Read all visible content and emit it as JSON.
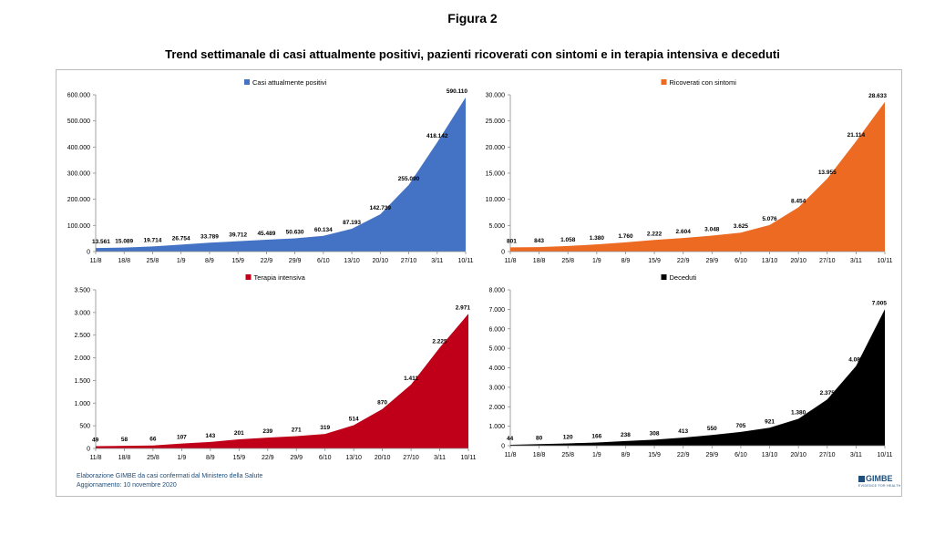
{
  "figure_label": "Figura 2",
  "figure_title": "Trend settimanale di casi attualmente positivi, pazienti ricoverati con sintomi e in terapia intensiva e deceduti",
  "footer": {
    "line1": "Elaborazione GIMBE da casi confermati dal Ministero della Salute",
    "line2": "Aggiornamento: 10 novembre 2020"
  },
  "logo": {
    "text": "GIMBE",
    "tagline": "EVIDENCE FOR HEALTH"
  },
  "chart_data": [
    {
      "type": "area",
      "title": "Casi attualmente positivi",
      "color": "#4472c4",
      "categories": [
        "11/8",
        "18/8",
        "25/8",
        "1/9",
        "8/9",
        "15/9",
        "22/9",
        "29/9",
        "6/10",
        "13/10",
        "20/10",
        "27/10",
        "3/11",
        "10/11"
      ],
      "series": [
        {
          "name": "Casi attualmente positivi",
          "values": [
            13561,
            15089,
            19714,
            26754,
            33789,
            39712,
            45489,
            50630,
            60134,
            87193,
            142739,
            255090,
            418142,
            590110
          ]
        }
      ],
      "data_labels": [
        "13.561",
        "15.089",
        "19.714",
        "26.754",
        "33.789",
        "39.712",
        "45.489",
        "50.630",
        "60.134",
        "87.193",
        "142.739",
        "255.090",
        "418.142",
        "590.110"
      ],
      "ylim": [
        0,
        600000
      ],
      "yticks": [
        0,
        100000,
        200000,
        300000,
        400000,
        500000,
        600000
      ],
      "ytick_labels": [
        "0",
        "100.000",
        "200.000",
        "300.000",
        "400.000",
        "500.000",
        "600.000"
      ],
      "legend_position": "top"
    },
    {
      "type": "area",
      "title": "Ricoverati con sintomi",
      "color": "#ed6a22",
      "categories": [
        "11/8",
        "18/8",
        "25/8",
        "1/9",
        "8/9",
        "15/9",
        "22/9",
        "29/9",
        "6/10",
        "13/10",
        "20/10",
        "27/10",
        "3/11",
        "10/11"
      ],
      "series": [
        {
          "name": "Ricoverati con sintomi",
          "values": [
            801,
            843,
            1058,
            1380,
            1760,
            2222,
            2604,
            3048,
            3625,
            5076,
            8454,
            13955,
            21114,
            28633
          ]
        }
      ],
      "data_labels": [
        "801",
        "843",
        "1.058",
        "1.380",
        "1.760",
        "2.222",
        "2.604",
        "3.048",
        "3.625",
        "5.076",
        "8.454",
        "13.955",
        "21.114",
        "28.633"
      ],
      "ylim": [
        0,
        30000
      ],
      "yticks": [
        0,
        5000,
        10000,
        15000,
        20000,
        25000,
        30000
      ],
      "ytick_labels": [
        "0",
        "5.000",
        "10.000",
        "15.000",
        "20.000",
        "25.000",
        "30.000"
      ],
      "legend_position": "top"
    },
    {
      "type": "area",
      "title": "Terapia intensiva",
      "color": "#c00018",
      "categories": [
        "11/8",
        "18/8",
        "25/8",
        "1/9",
        "8/9",
        "15/9",
        "22/9",
        "29/9",
        "6/10",
        "13/10",
        "20/10",
        "27/10",
        "3/11",
        "10/11"
      ],
      "series": [
        {
          "name": "Terapia intensiva",
          "values": [
            49,
            58,
            66,
            107,
            143,
            201,
            239,
            271,
            319,
            514,
            870,
            1411,
            2225,
            2971
          ]
        }
      ],
      "data_labels": [
        "49",
        "58",
        "66",
        "107",
        "143",
        "201",
        "239",
        "271",
        "319",
        "514",
        "870",
        "1.411",
        "2.225",
        "2.971"
      ],
      "ylim": [
        0,
        3500
      ],
      "yticks": [
        0,
        500,
        1000,
        1500,
        2000,
        2500,
        3000,
        3500
      ],
      "ytick_labels": [
        "0",
        "500",
        "1.000",
        "1.500",
        "2.000",
        "2.500",
        "3.000",
        "3.500"
      ],
      "legend_position": "top"
    },
    {
      "type": "area",
      "title": "Deceduti",
      "color": "#000000",
      "categories": [
        "11/8",
        "18/8",
        "25/8",
        "1/9",
        "8/9",
        "15/9",
        "22/9",
        "29/9",
        "6/10",
        "13/10",
        "20/10",
        "27/10",
        "3/11",
        "10/11"
      ],
      "series": [
        {
          "name": "Deceduti",
          "values": [
            44,
            80,
            120,
            166,
            238,
            308,
            413,
            550,
            705,
            921,
            1380,
            2375,
            4087,
            7005
          ]
        }
      ],
      "data_labels": [
        "44",
        "80",
        "120",
        "166",
        "238",
        "308",
        "413",
        "550",
        "705",
        "921",
        "1.380",
        "2.375",
        "4.087",
        "7.005"
      ],
      "ylim": [
        0,
        8000
      ],
      "yticks": [
        0,
        1000,
        2000,
        3000,
        4000,
        5000,
        6000,
        7000,
        8000
      ],
      "ytick_labels": [
        "0",
        "1.000",
        "2.000",
        "3.000",
        "4.000",
        "5.000",
        "6.000",
        "7.000",
        "8.000"
      ],
      "legend_position": "top"
    }
  ]
}
